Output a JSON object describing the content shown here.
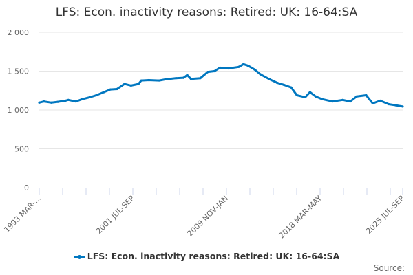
{
  "chart_data": {
    "type": "line",
    "title": "LFS: Econ. inactivity reasons: Retired: UK: 16-64:SA",
    "xlabel": "",
    "ylabel": "",
    "ylim": [
      0,
      2000
    ],
    "yticks": [
      0,
      500,
      1000,
      1500,
      2000
    ],
    "ytick_labels": [
      "0",
      "500",
      "1 000",
      "1 500",
      "2 000"
    ],
    "xtick_labels": [
      "1993 MAR-...",
      "2001 JUL-SEP",
      "2009 NOV-JAN",
      "2018 MAR-MAY",
      "2025 JUL-SEP"
    ],
    "xlim": [
      "1993-04",
      "2025-08"
    ],
    "grid": "horizontal",
    "legend": "bottom",
    "color": "#0077c0",
    "series": [
      {
        "name": "LFS: Econ. inactivity reasons: Retired: UK: 16-64:SA",
        "x": [
          "1993-04",
          "1993-09",
          "1994-05",
          "1994-12",
          "1995-08",
          "1995-11",
          "1996-07",
          "1997-02",
          "1997-10",
          "1998-05",
          "1999-01",
          "1999-08",
          "2000-03",
          "2000-11",
          "2001-06",
          "2002-02",
          "2002-05",
          "2003-01",
          "2003-12",
          "2004-07",
          "2005-06",
          "2006-02",
          "2006-06",
          "2006-10",
          "2007-08",
          "2008-04",
          "2008-11",
          "2009-05",
          "2010-02",
          "2011-01",
          "2011-06",
          "2011-11",
          "2012-06",
          "2012-12",
          "2013-10",
          "2014-06",
          "2015-01",
          "2015-09",
          "2016-03",
          "2016-12",
          "2017-05",
          "2017-11",
          "2018-06",
          "2019-05",
          "2020-04",
          "2020-12",
          "2021-07",
          "2022-05",
          "2022-12",
          "2023-08",
          "2024-05",
          "2025-01",
          "2025-08"
        ],
        "values": [
          1095,
          1110,
          1095,
          1105,
          1120,
          1130,
          1110,
          1140,
          1165,
          1190,
          1230,
          1265,
          1270,
          1335,
          1315,
          1335,
          1380,
          1385,
          1380,
          1395,
          1410,
          1415,
          1450,
          1400,
          1410,
          1490,
          1500,
          1545,
          1535,
          1555,
          1590,
          1570,
          1520,
          1460,
          1395,
          1350,
          1325,
          1290,
          1190,
          1165,
          1230,
          1175,
          1140,
          1110,
          1130,
          1110,
          1175,
          1190,
          1085,
          1120,
          1075,
          1060,
          1045
        ]
      }
    ]
  },
  "source_label": "Source:"
}
